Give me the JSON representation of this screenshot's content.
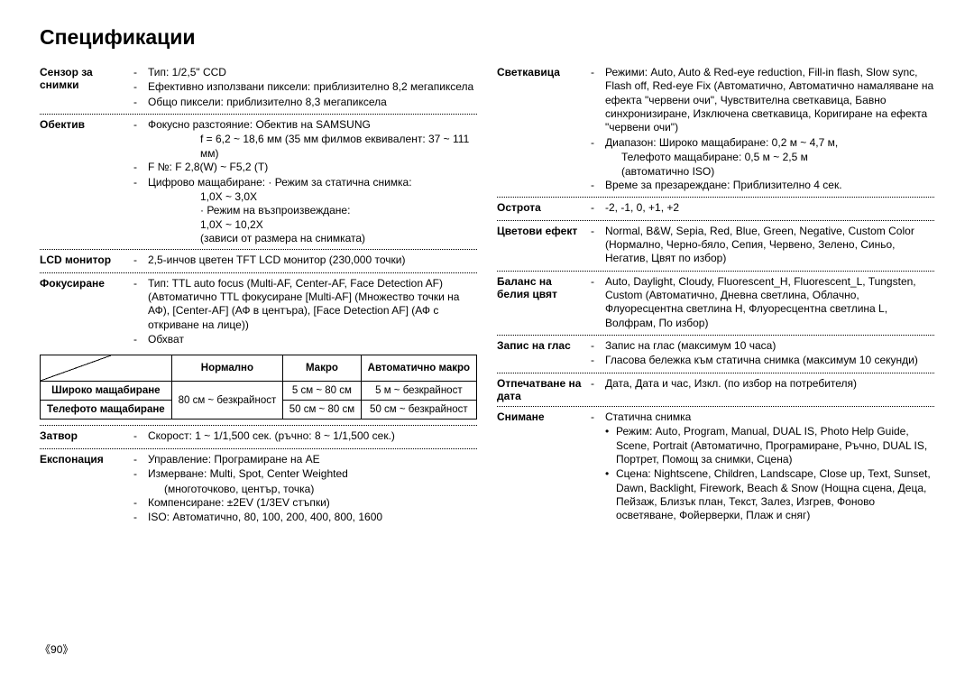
{
  "page_title": "Спецификации",
  "page_number": "90",
  "left": {
    "sensor": {
      "label": "Сензор за снимки",
      "items": [
        "Тип:  1/2,5\" CCD",
        "Ефективно използвани пиксели: приблизително 8,2 мегапиксела",
        "Общо пиксели: приблизително 8,3 мегапиксела"
      ]
    },
    "lens": {
      "label": "Обектив",
      "items": [
        "Фокусно разстояние:  Обектив на SAMSUNG",
        "F №:  F 2,8(W) ~ F5,2 (T)",
        "Цифрово мащабиране: · Режим за статична снимка:"
      ],
      "lens_sub1": "f = 6,2 ~ 18,6 мм (35 мм филмов еквивалент: 37 ~ 111 мм)",
      "zoom1": "1,0X ~ 3,0X",
      "zoom2_lbl": "· Режим на възпроизвеждане:",
      "zoom2": "1,0X ~ 10,2X",
      "zoom3": "(зависи от размера на снимката)"
    },
    "lcd": {
      "label": "LCD монитор",
      "item": "2,5-инчов цветен TFT LCD монитор (230,000 точки)"
    },
    "focus": {
      "label": "Фокусиране",
      "item1": "Тип:  TTL auto focus (Multi-AF, Center-AF, Face Detection AF) (Автоматично TTL фокусиране [Multi-AF] (Множество точки на АФ), [Center-AF] (АФ в центъра), [Face Detection AF] (АФ с откриване на лице))",
      "item2": "Обхват",
      "table": {
        "cols": [
          "",
          "Нормално",
          "Макро",
          "Автоматично макро"
        ],
        "rows": [
          {
            "head": "Широко мащабиране",
            "normal_rowspan_text": "80 см ~ безкрайност",
            "macro": "5 см ~ 80 см",
            "auto": "5 м ~ безкрайност"
          },
          {
            "head": "Телефото мащабиране",
            "macro": "50 см ~ 80 см",
            "auto": "50 см ~ безкрайност"
          }
        ]
      }
    },
    "shutter": {
      "label": "Затвор",
      "item": "Скорост:  1 ~ 1/1,500 сек. (ръчно:  8 ~ 1/1,500 сек.)"
    },
    "exposure": {
      "label": "Експонация",
      "items": [
        "Управление:  Програмиране на AE",
        "Измерване:  Multi, Spot, Center Weighted",
        "Компенсиране: ±2EV (1/3EV стъпки)",
        "ISO:  Автоматично, 80, 100, 200, 400, 800, 1600"
      ],
      "sub": "(многоточково, център, точка)"
    }
  },
  "right": {
    "flash": {
      "label": "Светкавица",
      "items": [
        "Режими: Auto, Auto & Red-eye reduction, Fill-in flash, Slow sync, Flash off, Red-eye Fix (Автоматично, Автоматично намаляване на ефекта \"червени очи\", Чувствителна светкавица, Бавно синхронизиране, Изключена светкавица, Коригиране на ефекта \"червени очи\")",
        "Диапазон: Широко мащабиране:  0,2 м ~ 4,7 м,",
        "Време за презареждане:  Приблизително 4 сек."
      ],
      "range2": "Телефото мащабиране:  0,5 м ~ 2,5 м",
      "range3": "(автоматично ISO)"
    },
    "sharpness": {
      "label": "Острота",
      "item": "-2, -1, 0, +1, +2"
    },
    "color_effect": {
      "label": "Цветови ефект",
      "item": "Normal, B&W, Sepia, Red, Blue, Green, Negative, Custom Color (Нормално, Черно-бяло, Сепия, Червено, Зелено, Синьо, Негатив, Цвят по избор)"
    },
    "wb": {
      "label": "Баланс на белия цвят",
      "item": "Auto, Daylight, Cloudy, Fluorescent_H, Fluorescent_L, Tungsten, Custom (Автоматично, Дневна светлина, Облачно, Флуоресцентна светлина H, Флуоресцентна светлина L, Волфрам, По избор)"
    },
    "voice": {
      "label": "Запис на глас",
      "items": [
        "Запис на глас (максимум 10 часа)",
        "Гласова бележка към статична снимка (максимум 10 секунди)"
      ]
    },
    "date": {
      "label": "Отпечатване на дата",
      "item": "Дата, Дата и час, Изкл. (по избор на потребителя)"
    },
    "shooting": {
      "label": "Снимане",
      "item": "Статична снимка",
      "bullets": [
        {
          "main": "Режим: Auto, Program, Manual, DUAL IS, Photo Help Guide, Scene, Portrait (Автоматично, Програмиране, Ръчно, DUAL IS, Портрет, Помощ за снимки, Сцена)"
        },
        {
          "main": "Сцена: Nightscene, Children, Landscape, Close up, Text, Sunset, Dawn, Backlight, Firework, Beach & Snow (Нощна сцена, Деца, Пейзаж, Близък план, Текст, Залез, Изгрев, Фоново осветяване, Фойерверки, Плаж и сняг)"
        }
      ]
    }
  }
}
